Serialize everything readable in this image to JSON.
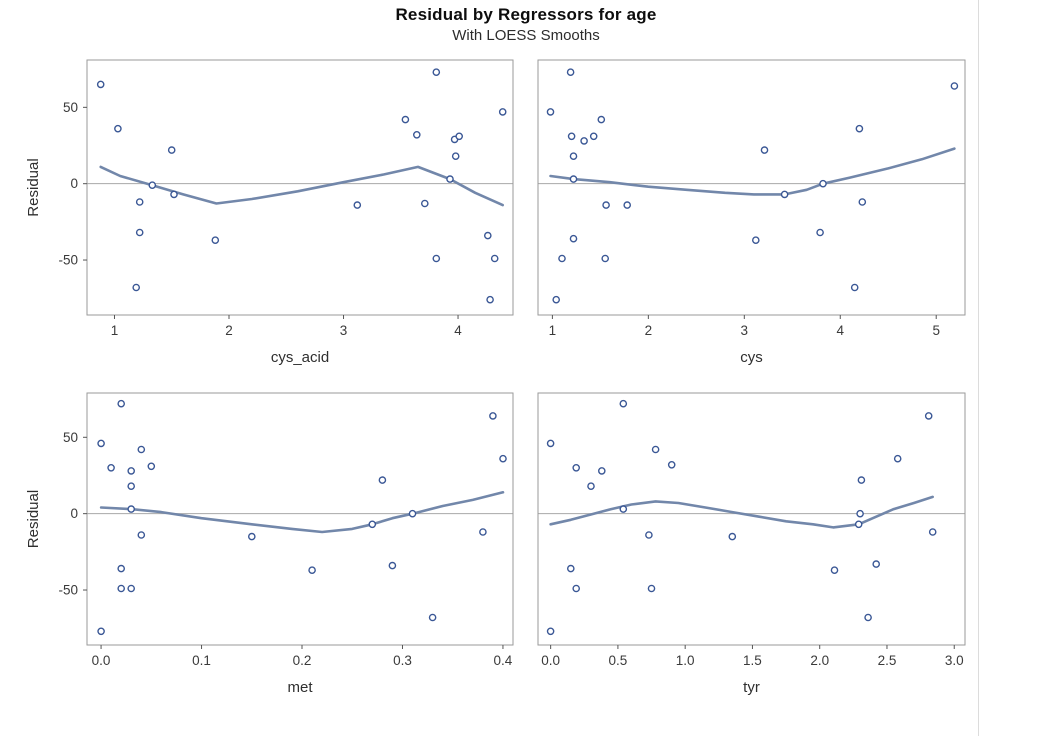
{
  "chart_data": {
    "type": "scatter",
    "title": "Residual by Regressors for age",
    "subtitle": "With LOESS Smooths",
    "ylabel": "Residual",
    "legend": "none",
    "grid": "off",
    "layout": "2x2 panels, shared residual y-axis, zero reference line per panel",
    "colors": {
      "marker_stroke": "#3a5795",
      "loess_line": "#7287aa",
      "zero_line": "#a8a8a8",
      "panel_border": "#9a9a9a",
      "tick": "#555555",
      "title_text": "#0d0d0d"
    },
    "y_ticks": [
      -50,
      0,
      50
    ],
    "y_tick_labels": [
      "-50",
      "0",
      "50"
    ],
    "panels": [
      {
        "xlabel": "cys_acid",
        "x_ticks": [
          1,
          2,
          3,
          4
        ],
        "x_tick_labels": [
          "1",
          "2",
          "3",
          "4"
        ],
        "x_domain": [
          0.76,
          4.48
        ],
        "y_domain": [
          -86,
          81
        ],
        "show_y_axis": true,
        "points": [
          [
            0.88,
            65
          ],
          [
            1.03,
            36
          ],
          [
            1.19,
            -68
          ],
          [
            1.22,
            -12
          ],
          [
            1.22,
            -32
          ],
          [
            1.33,
            -1
          ],
          [
            1.5,
            22
          ],
          [
            1.52,
            -7
          ],
          [
            1.88,
            -37
          ],
          [
            3.12,
            -14
          ],
          [
            3.54,
            42
          ],
          [
            3.64,
            32
          ],
          [
            3.71,
            -13
          ],
          [
            3.81,
            73
          ],
          [
            3.81,
            -49
          ],
          [
            3.93,
            3
          ],
          [
            3.97,
            29
          ],
          [
            3.98,
            18
          ],
          [
            4.01,
            31
          ],
          [
            4.26,
            -34
          ],
          [
            4.28,
            -76
          ],
          [
            4.32,
            -49
          ],
          [
            4.39,
            47
          ]
        ],
        "loess": [
          [
            0.88,
            11
          ],
          [
            1.05,
            5
          ],
          [
            1.33,
            -1
          ],
          [
            1.6,
            -7
          ],
          [
            1.89,
            -13
          ],
          [
            2.2,
            -10
          ],
          [
            2.6,
            -5
          ],
          [
            3.0,
            1
          ],
          [
            3.35,
            6
          ],
          [
            3.65,
            11
          ],
          [
            3.93,
            3
          ],
          [
            4.15,
            -6
          ],
          [
            4.39,
            -14
          ]
        ]
      },
      {
        "xlabel": "cys",
        "x_ticks": [
          1,
          2,
          3,
          4,
          5
        ],
        "x_tick_labels": [
          "1",
          "2",
          "3",
          "4",
          "5"
        ],
        "x_domain": [
          0.85,
          5.3
        ],
        "y_domain": [
          -86,
          81
        ],
        "show_y_axis": false,
        "points": [
          [
            0.98,
            47
          ],
          [
            1.04,
            -76
          ],
          [
            1.1,
            -49
          ],
          [
            1.19,
            73
          ],
          [
            1.2,
            31
          ],
          [
            1.22,
            18
          ],
          [
            1.22,
            3
          ],
          [
            1.22,
            -36
          ],
          [
            1.33,
            28
          ],
          [
            1.43,
            31
          ],
          [
            1.51,
            42
          ],
          [
            1.55,
            -49
          ],
          [
            1.56,
            -14
          ],
          [
            1.78,
            -14
          ],
          [
            3.12,
            -37
          ],
          [
            3.21,
            22
          ],
          [
            3.42,
            -7
          ],
          [
            3.79,
            -32
          ],
          [
            3.82,
            0
          ],
          [
            4.15,
            -68
          ],
          [
            4.2,
            36
          ],
          [
            4.23,
            -12
          ],
          [
            5.19,
            64
          ]
        ],
        "loess": [
          [
            0.98,
            5
          ],
          [
            1.22,
            3
          ],
          [
            1.6,
            1
          ],
          [
            2.0,
            -2
          ],
          [
            2.4,
            -4
          ],
          [
            2.8,
            -6
          ],
          [
            3.1,
            -7
          ],
          [
            3.42,
            -7
          ],
          [
            3.65,
            -4
          ],
          [
            3.82,
            0
          ],
          [
            4.1,
            4
          ],
          [
            4.5,
            10
          ],
          [
            4.85,
            16
          ],
          [
            5.19,
            23
          ]
        ]
      },
      {
        "xlabel": "met",
        "x_ticks": [
          0.0,
          0.1,
          0.2,
          0.3,
          0.4
        ],
        "x_tick_labels": [
          "0.0",
          "0.1",
          "0.2",
          "0.3",
          "0.4"
        ],
        "x_domain": [
          -0.014,
          0.41
        ],
        "y_domain": [
          -86,
          79
        ],
        "show_y_axis": true,
        "points": [
          [
            0.0,
            46
          ],
          [
            0.0,
            -77
          ],
          [
            0.01,
            30
          ],
          [
            0.02,
            72
          ],
          [
            0.02,
            -36
          ],
          [
            0.02,
            -49
          ],
          [
            0.03,
            -49
          ],
          [
            0.03,
            28
          ],
          [
            0.03,
            18
          ],
          [
            0.03,
            3
          ],
          [
            0.04,
            42
          ],
          [
            0.04,
            -14
          ],
          [
            0.05,
            31
          ],
          [
            0.15,
            -15
          ],
          [
            0.21,
            -37
          ],
          [
            0.27,
            -7
          ],
          [
            0.28,
            22
          ],
          [
            0.29,
            -34
          ],
          [
            0.31,
            0
          ],
          [
            0.33,
            -68
          ],
          [
            0.38,
            -12
          ],
          [
            0.39,
            64
          ],
          [
            0.4,
            36
          ]
        ],
        "loess": [
          [
            0.0,
            4
          ],
          [
            0.03,
            3
          ],
          [
            0.06,
            1
          ],
          [
            0.1,
            -3
          ],
          [
            0.15,
            -7
          ],
          [
            0.19,
            -10
          ],
          [
            0.22,
            -12
          ],
          [
            0.25,
            -10
          ],
          [
            0.27,
            -7
          ],
          [
            0.29,
            -3
          ],
          [
            0.31,
            0
          ],
          [
            0.34,
            5
          ],
          [
            0.37,
            9
          ],
          [
            0.4,
            14
          ]
        ]
      },
      {
        "xlabel": "tyr",
        "x_ticks": [
          0.0,
          0.5,
          1.0,
          1.5,
          2.0,
          2.5,
          3.0
        ],
        "x_tick_labels": [
          "0.0",
          "0.5",
          "1.0",
          "1.5",
          "2.0",
          "2.5",
          "3.0"
        ],
        "x_domain": [
          -0.094,
          3.08
        ],
        "y_domain": [
          -86,
          79
        ],
        "show_y_axis": false,
        "points": [
          [
            0.0,
            46
          ],
          [
            0.0,
            -77
          ],
          [
            0.15,
            -36
          ],
          [
            0.19,
            30
          ],
          [
            0.19,
            -49
          ],
          [
            0.3,
            18
          ],
          [
            0.38,
            28
          ],
          [
            0.54,
            72
          ],
          [
            0.54,
            3
          ],
          [
            0.73,
            -14
          ],
          [
            0.75,
            -49
          ],
          [
            0.78,
            42
          ],
          [
            0.9,
            32
          ],
          [
            1.35,
            -15
          ],
          [
            2.11,
            -37
          ],
          [
            2.29,
            -7
          ],
          [
            2.3,
            0
          ],
          [
            2.31,
            22
          ],
          [
            2.36,
            -68
          ],
          [
            2.42,
            -33
          ],
          [
            2.58,
            36
          ],
          [
            2.81,
            64
          ],
          [
            2.84,
            -12
          ]
        ],
        "loess": [
          [
            0.0,
            -7
          ],
          [
            0.15,
            -4
          ],
          [
            0.32,
            0
          ],
          [
            0.45,
            3
          ],
          [
            0.6,
            6
          ],
          [
            0.78,
            8
          ],
          [
            0.95,
            7
          ],
          [
            1.15,
            4
          ],
          [
            1.35,
            1
          ],
          [
            1.55,
            -2
          ],
          [
            1.75,
            -5
          ],
          [
            1.95,
            -7
          ],
          [
            2.1,
            -9
          ],
          [
            2.29,
            -7
          ],
          [
            2.42,
            -2
          ],
          [
            2.55,
            3
          ],
          [
            2.7,
            7
          ],
          [
            2.84,
            11
          ]
        ]
      }
    ]
  }
}
